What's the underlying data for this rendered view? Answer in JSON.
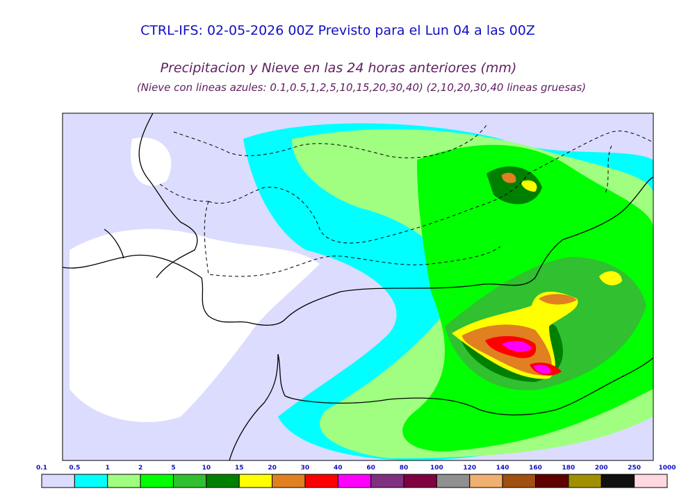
{
  "header": {
    "title": "CTRL-IFS: 02-05-2026 00Z Previsto para el Lun 04 a las 00Z",
    "subtitle": "Precipitacion y Nieve en las 24 horas anteriores (mm)",
    "note": "(Nieve con lineas azules: 0.1,0.5,1,2,5,10,15,20,30,40)  (2,10,20,30,40 lineas gruesas)"
  },
  "colorbar": {
    "levels": [
      0.1,
      0.5,
      1,
      2,
      5,
      10,
      15,
      20,
      30,
      40,
      60,
      80,
      100,
      120,
      140,
      160,
      180,
      200,
      250,
      1000
    ],
    "colors": [
      "#dcdcff",
      "#00ffff",
      "#a0ff80",
      "#00ff00",
      "#30c030",
      "#008000",
      "#ffff00",
      "#e08020",
      "#ff0000",
      "#ff00ff",
      "#803080",
      "#800040",
      "#909090",
      "#f0b070",
      "#a05010",
      "#600000",
      "#a09000",
      "#101010",
      "#ffd8e0"
    ]
  }
}
